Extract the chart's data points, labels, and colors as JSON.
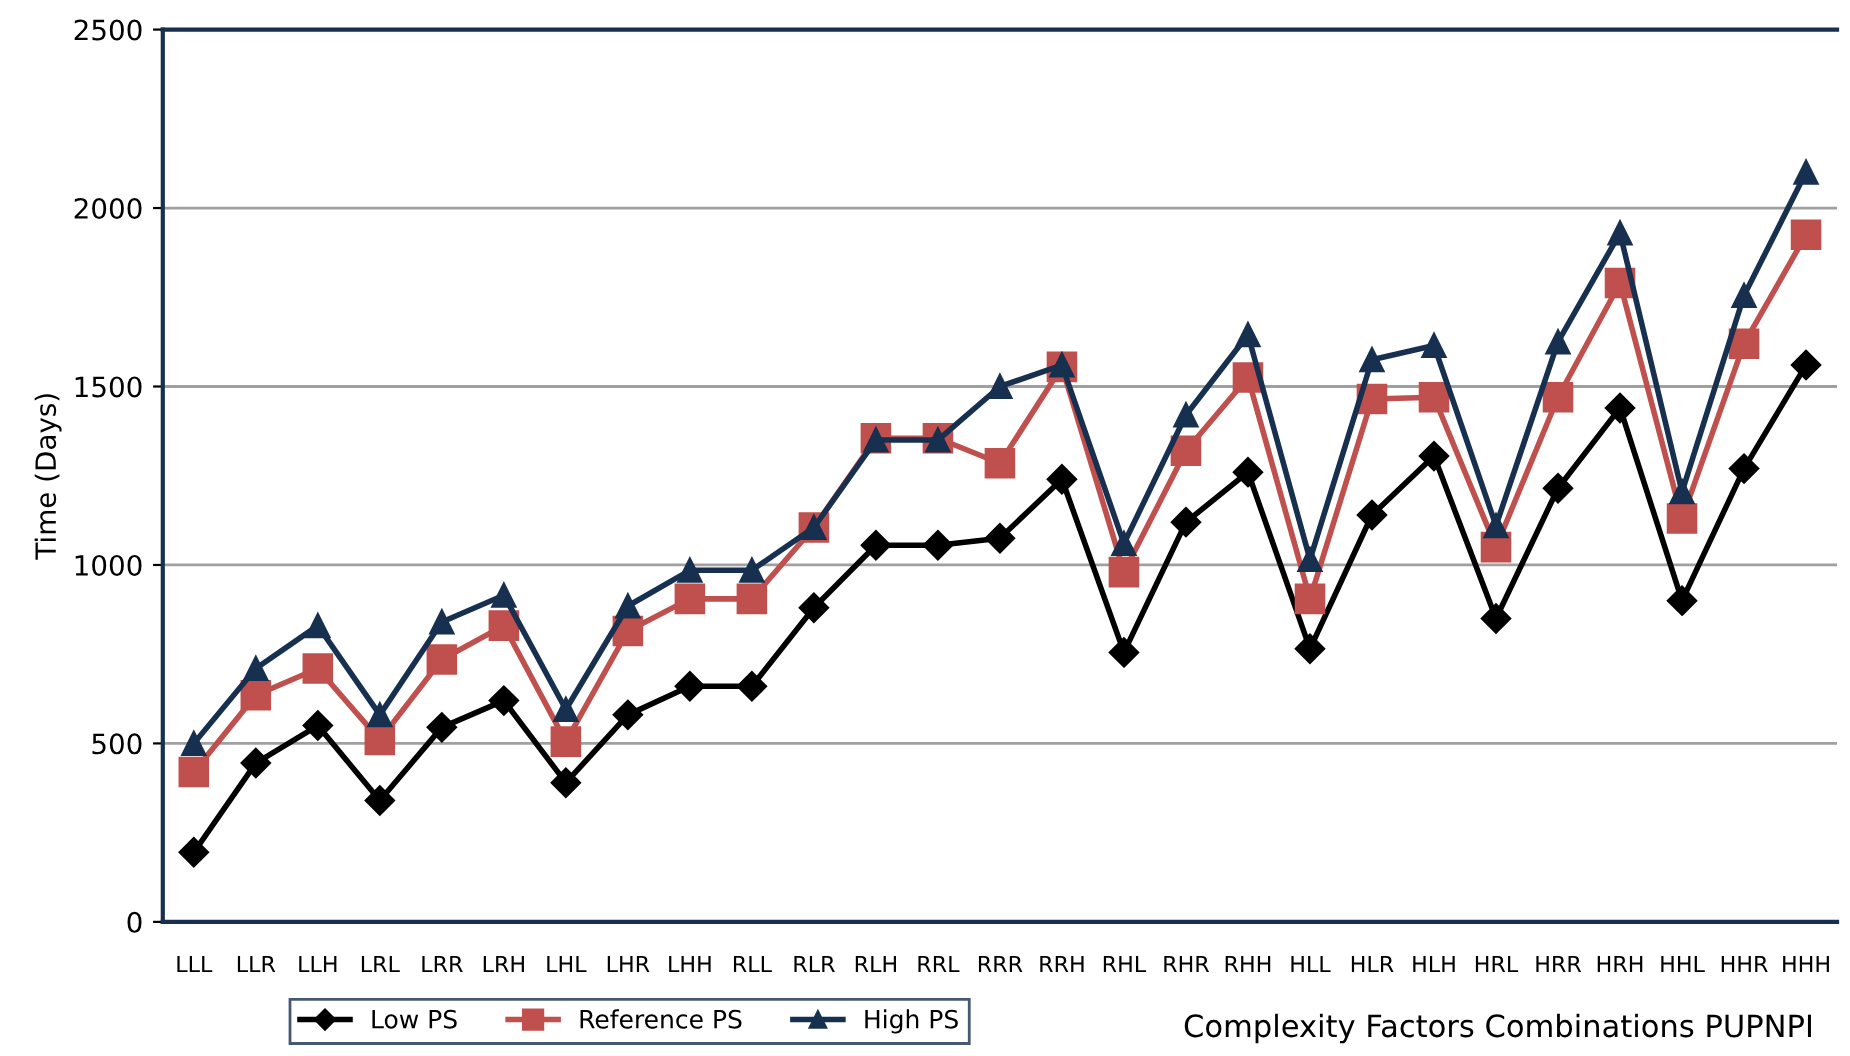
{
  "chart_data": {
    "type": "line",
    "ylabel": "Time (Days)",
    "xlabel": "Complexity Factors Combinations PUPNPI",
    "categories": [
      "LLL",
      "LLR",
      "LLH",
      "LRL",
      "LRR",
      "LRH",
      "LHL",
      "LHR",
      "LHH",
      "RLL",
      "RLR",
      "RLH",
      "RRL",
      "RRR",
      "RRH",
      "RHL",
      "RHR",
      "RHH",
      "HLL",
      "HLR",
      "HLH",
      "HRL",
      "HRR",
      "HRH",
      "HHL",
      "HHR",
      "HHH"
    ],
    "series": [
      {
        "name": "Low PS",
        "color": "#000000",
        "marker": "diamond",
        "values": [
          195,
          445,
          550,
          340,
          545,
          620,
          390,
          580,
          660,
          660,
          880,
          1055,
          1055,
          1075,
          1240,
          755,
          1120,
          1260,
          765,
          1140,
          1305,
          850,
          1215,
          1440,
          900,
          1270,
          1560
        ]
      },
      {
        "name": "Reference PS",
        "color": "#c0504d",
        "marker": "square",
        "values": [
          420,
          635,
          710,
          510,
          735,
          830,
          505,
          815,
          905,
          905,
          1105,
          1355,
          1355,
          1285,
          1555,
          980,
          1320,
          1525,
          905,
          1465,
          1470,
          1050,
          1470,
          1790,
          1130,
          1620,
          1925
        ]
      },
      {
        "name": "High PS",
        "color": "#17304f",
        "marker": "triangle",
        "values": [
          500,
          710,
          830,
          580,
          840,
          915,
          595,
          885,
          985,
          985,
          1105,
          1350,
          1350,
          1500,
          1560,
          1060,
          1420,
          1645,
          1015,
          1575,
          1615,
          1110,
          1625,
          1930,
          1205,
          1755,
          2100
        ]
      }
    ],
    "ylim": [
      0,
      2500
    ],
    "yticks": [
      0,
      500,
      1000,
      1500,
      2000,
      2500
    ],
    "grid": "y",
    "legend": "bottom left",
    "line_style": "solid"
  }
}
